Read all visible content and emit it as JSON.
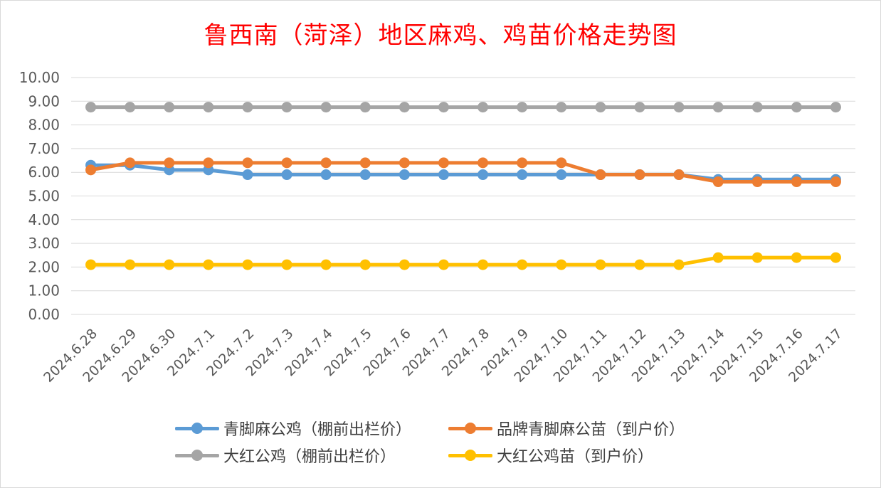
{
  "chart_data": {
    "type": "line",
    "title": "鲁西南（菏泽）地区麻鸡、鸡苗价格走势图",
    "categories": [
      "2024.6.28",
      "2024.6.29",
      "2024.6.30",
      "2024.7.1",
      "2024.7.2",
      "2024.7.3",
      "2024.7.4",
      "2024.7.5",
      "2024.7.6",
      "2024.7.7",
      "2024.7.8",
      "2024.7.9",
      "2024.7.10",
      "2024.7.11",
      "2024.7.12",
      "2024.7.13",
      "2024.7.14",
      "2024.7.15",
      "2024.7.16",
      "2024.7.17"
    ],
    "y_ticks": [
      "0.00",
      "1.00",
      "2.00",
      "3.00",
      "4.00",
      "5.00",
      "6.00",
      "7.00",
      "8.00",
      "9.00",
      "10.00"
    ],
    "ylim": [
      0,
      10
    ],
    "grid": true,
    "legend_position": "bottom",
    "series": [
      {
        "name": "青脚麻公鸡（棚前出栏价）",
        "color": "#5b9bd5",
        "values": [
          6.3,
          6.3,
          6.1,
          6.1,
          5.9,
          5.9,
          5.9,
          5.9,
          5.9,
          5.9,
          5.9,
          5.9,
          5.9,
          5.9,
          5.9,
          5.9,
          5.7,
          5.7,
          5.7,
          5.7
        ]
      },
      {
        "name": "品牌青脚麻公苗（到户价）",
        "color": "#ed7d31",
        "values": [
          6.1,
          6.4,
          6.4,
          6.4,
          6.4,
          6.4,
          6.4,
          6.4,
          6.4,
          6.4,
          6.4,
          6.4,
          6.4,
          5.9,
          5.9,
          5.9,
          5.6,
          5.6,
          5.6,
          5.6
        ]
      },
      {
        "name": "大红公鸡（棚前出栏价）",
        "color": "#a5a5a5",
        "values": [
          8.75,
          8.75,
          8.75,
          8.75,
          8.75,
          8.75,
          8.75,
          8.75,
          8.75,
          8.75,
          8.75,
          8.75,
          8.75,
          8.75,
          8.75,
          8.75,
          8.75,
          8.75,
          8.75,
          8.75
        ]
      },
      {
        "name": "大红公鸡苗（到户价）",
        "color": "#ffc000",
        "values": [
          2.1,
          2.1,
          2.1,
          2.1,
          2.1,
          2.1,
          2.1,
          2.1,
          2.1,
          2.1,
          2.1,
          2.1,
          2.1,
          2.1,
          2.1,
          2.1,
          2.4,
          2.4,
          2.4,
          2.4
        ]
      }
    ]
  }
}
